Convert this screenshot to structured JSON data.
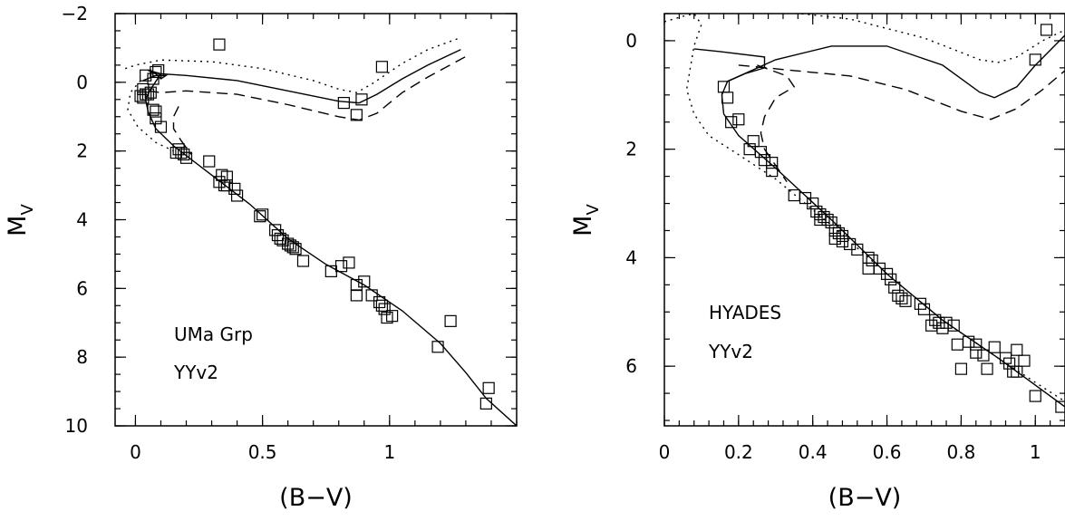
{
  "chart_data": [
    {
      "type": "scatter",
      "xlabel": "(B−V)",
      "ylabel": "M",
      "ylabel_sub": "V",
      "xlim": [
        -0.08,
        1.5
      ],
      "ylim": [
        10,
        -2
      ],
      "y_inverted": true,
      "xticks": [
        0,
        0.5,
        1
      ],
      "xtick_labels": [
        "0",
        "0.5",
        "1"
      ],
      "yticks": [
        -2,
        0,
        2,
        4,
        6,
        8,
        10
      ],
      "ytick_labels": [
        "−2",
        "0",
        "2",
        "4",
        "6",
        "8",
        "10"
      ],
      "annotations": [
        "UMa Grp",
        "YYv2"
      ],
      "points": [
        [
          0.33,
          -1.1
        ],
        [
          0.97,
          -0.45
        ],
        [
          0.04,
          -0.2
        ],
        [
          0.08,
          -0.3
        ],
        [
          0.09,
          -0.35
        ],
        [
          0.07,
          -0.1
        ],
        [
          0.03,
          0.2
        ],
        [
          0.02,
          0.4
        ],
        [
          0.04,
          0.35
        ],
        [
          0.06,
          0.3
        ],
        [
          0.03,
          0.45
        ],
        [
          0.05,
          0.35
        ],
        [
          0.07,
          0.8
        ],
        [
          0.08,
          0.85
        ],
        [
          0.08,
          1.05
        ],
        [
          0.1,
          1.3
        ],
        [
          0.82,
          0.6
        ],
        [
          0.89,
          0.5
        ],
        [
          0.87,
          0.95
        ],
        [
          0.17,
          1.95
        ],
        [
          0.18,
          2.05
        ],
        [
          0.19,
          2.1
        ],
        [
          0.2,
          2.2
        ],
        [
          0.16,
          2.05
        ],
        [
          0.29,
          2.3
        ],
        [
          0.34,
          2.7
        ],
        [
          0.36,
          2.75
        ],
        [
          0.33,
          2.9
        ],
        [
          0.35,
          3.0
        ],
        [
          0.36,
          3.0
        ],
        [
          0.39,
          3.1
        ],
        [
          0.4,
          3.3
        ],
        [
          0.5,
          3.85
        ],
        [
          0.49,
          3.9
        ],
        [
          0.55,
          4.3
        ],
        [
          0.56,
          4.45
        ],
        [
          0.57,
          4.55
        ],
        [
          0.58,
          4.6
        ],
        [
          0.6,
          4.7
        ],
        [
          0.61,
          4.75
        ],
        [
          0.62,
          4.8
        ],
        [
          0.63,
          4.85
        ],
        [
          0.66,
          5.2
        ],
        [
          0.77,
          5.5
        ],
        [
          0.81,
          5.35
        ],
        [
          0.84,
          5.25
        ],
        [
          0.9,
          5.8
        ],
        [
          0.87,
          5.9
        ],
        [
          0.87,
          6.2
        ],
        [
          0.93,
          6.2
        ],
        [
          0.96,
          6.4
        ],
        [
          0.97,
          6.5
        ],
        [
          0.98,
          6.6
        ],
        [
          0.99,
          6.85
        ],
        [
          1.01,
          6.8
        ],
        [
          1.24,
          6.95
        ],
        [
          1.19,
          7.7
        ],
        [
          1.39,
          8.9
        ],
        [
          1.38,
          9.35
        ]
      ],
      "isochrones": [
        {
          "style": "solid",
          "points": [
            [
              0.03,
              -0.05
            ],
            [
              0.08,
              -0.2
            ],
            [
              0.12,
              -0.2
            ],
            [
              0.1,
              -0.1
            ],
            [
              0.08,
              -0.25
            ],
            [
              0.05,
              -0.35
            ],
            [
              0.1,
              -0.25
            ],
            [
              0.06,
              0.2
            ],
            [
              0.04,
              0.5
            ],
            [
              0.05,
              0.85
            ],
            [
              0.08,
              1.35
            ],
            [
              0.15,
              1.85
            ],
            [
              0.3,
              2.7
            ],
            [
              0.45,
              3.55
            ],
            [
              0.6,
              4.55
            ],
            [
              0.75,
              5.3
            ],
            [
              0.9,
              5.9
            ],
            [
              1.05,
              6.65
            ],
            [
              1.2,
              7.6
            ],
            [
              1.3,
              8.45
            ],
            [
              1.38,
              9.2
            ],
            [
              1.5,
              10.0
            ]
          ]
        },
        {
          "style": "solid",
          "points": [
            [
              0.1,
              -0.25
            ],
            [
              0.2,
              -0.2
            ],
            [
              0.4,
              -0.05
            ],
            [
              0.6,
              0.25
            ],
            [
              0.8,
              0.55
            ],
            [
              0.88,
              0.6
            ],
            [
              0.95,
              0.35
            ],
            [
              1.05,
              -0.1
            ],
            [
              1.15,
              -0.5
            ],
            [
              1.28,
              -0.95
            ]
          ]
        },
        {
          "style": "dashed",
          "points": [
            [
              0.05,
              0.25
            ],
            [
              0.1,
              0.3
            ],
            [
              0.2,
              0.25
            ],
            [
              0.4,
              0.35
            ],
            [
              0.6,
              0.65
            ],
            [
              0.8,
              1.0
            ],
            [
              0.88,
              1.1
            ],
            [
              0.95,
              0.9
            ],
            [
              1.05,
              0.3
            ],
            [
              1.15,
              -0.15
            ],
            [
              1.3,
              -0.75
            ]
          ]
        },
        {
          "style": "dashed",
          "points": [
            [
              0.17,
              0.7
            ],
            [
              0.15,
              1.0
            ],
            [
              0.15,
              1.35
            ],
            [
              0.18,
              1.7
            ],
            [
              0.22,
              2.1
            ]
          ]
        },
        {
          "style": "dotted",
          "points": [
            [
              -0.04,
              -0.4
            ],
            [
              0.0,
              -0.5
            ],
            [
              0.1,
              -0.65
            ],
            [
              0.3,
              -0.6
            ],
            [
              0.5,
              -0.4
            ],
            [
              0.7,
              -0.05
            ],
            [
              0.8,
              0.2
            ],
            [
              0.87,
              0.3
            ],
            [
              0.93,
              0.05
            ],
            [
              1.05,
              -0.55
            ],
            [
              1.15,
              -0.95
            ],
            [
              1.28,
              -1.3
            ]
          ]
        },
        {
          "style": "dotted",
          "points": [
            [
              0.02,
              -0.05
            ],
            [
              -0.02,
              0.3
            ],
            [
              -0.03,
              0.8
            ],
            [
              0.01,
              1.3
            ],
            [
              0.08,
              1.75
            ],
            [
              0.15,
              2.0
            ]
          ]
        }
      ]
    },
    {
      "type": "scatter",
      "xlabel": "(B−V)",
      "ylabel": "M",
      "ylabel_sub": "V",
      "xlim": [
        0,
        1.08
      ],
      "ylim": [
        7.1,
        -0.5
      ],
      "y_inverted": true,
      "xticks": [
        0,
        0.2,
        0.4,
        0.6,
        0.8,
        1
      ],
      "xtick_labels": [
        "0",
        "0.2",
        "0.4",
        "0.6",
        "0.8",
        "1"
      ],
      "yticks": [
        0,
        2,
        4,
        6
      ],
      "ytick_labels": [
        "0",
        "2",
        "4",
        "6"
      ],
      "annotations": [
        "HYADES",
        "YYv2"
      ],
      "points": [
        [
          1.03,
          -0.2
        ],
        [
          1.0,
          0.35
        ],
        [
          0.16,
          0.85
        ],
        [
          0.17,
          1.05
        ],
        [
          0.18,
          1.5
        ],
        [
          0.2,
          1.45
        ],
        [
          0.24,
          1.85
        ],
        [
          0.23,
          2.0
        ],
        [
          0.26,
          2.05
        ],
        [
          0.27,
          2.2
        ],
        [
          0.29,
          2.25
        ],
        [
          0.29,
          2.4
        ],
        [
          0.35,
          2.85
        ],
        [
          0.38,
          2.9
        ],
        [
          0.4,
          3.0
        ],
        [
          0.41,
          3.15
        ],
        [
          0.42,
          3.2
        ],
        [
          0.43,
          3.25
        ],
        [
          0.44,
          3.3
        ],
        [
          0.42,
          3.3
        ],
        [
          0.45,
          3.35
        ],
        [
          0.46,
          3.5
        ],
        [
          0.47,
          3.55
        ],
        [
          0.46,
          3.65
        ],
        [
          0.48,
          3.6
        ],
        [
          0.48,
          3.7
        ],
        [
          0.5,
          3.75
        ],
        [
          0.52,
          3.85
        ],
        [
          0.55,
          4.0
        ],
        [
          0.56,
          4.05
        ],
        [
          0.55,
          4.2
        ],
        [
          0.58,
          4.2
        ],
        [
          0.6,
          4.3
        ],
        [
          0.61,
          4.4
        ],
        [
          0.62,
          4.55
        ],
        [
          0.63,
          4.7
        ],
        [
          0.64,
          4.75
        ],
        [
          0.65,
          4.8
        ],
        [
          0.69,
          4.85
        ],
        [
          0.7,
          4.95
        ],
        [
          0.72,
          5.25
        ],
        [
          0.73,
          5.15
        ],
        [
          0.74,
          5.2
        ],
        [
          0.75,
          5.3
        ],
        [
          0.76,
          5.2
        ],
        [
          0.78,
          5.25
        ],
        [
          0.79,
          5.6
        ],
        [
          0.82,
          5.55
        ],
        [
          0.84,
          5.6
        ],
        [
          0.84,
          5.75
        ],
        [
          0.86,
          5.8
        ],
        [
          0.87,
          6.05
        ],
        [
          0.8,
          6.05
        ],
        [
          0.89,
          5.65
        ],
        [
          0.92,
          5.85
        ],
        [
          0.93,
          5.95
        ],
        [
          0.94,
          6.1
        ],
        [
          0.95,
          6.1
        ],
        [
          0.95,
          5.7
        ],
        [
          0.97,
          5.9
        ],
        [
          1.0,
          6.55
        ],
        [
          1.07,
          6.75
        ]
      ],
      "isochrones": [
        {
          "style": "solid",
          "points": [
            [
              0.08,
              0.15
            ],
            [
              0.15,
              0.2
            ],
            [
              0.27,
              0.3
            ],
            [
              0.27,
              0.5
            ],
            [
              0.22,
              0.6
            ],
            [
              0.17,
              0.75
            ],
            [
              0.155,
              1.0
            ],
            [
              0.16,
              1.35
            ],
            [
              0.2,
              1.75
            ],
            [
              0.3,
              2.35
            ],
            [
              0.45,
              3.3
            ],
            [
              0.6,
              4.3
            ],
            [
              0.75,
              5.15
            ],
            [
              0.9,
              5.85
            ],
            [
              1.0,
              6.35
            ],
            [
              1.08,
              6.75
            ]
          ]
        },
        {
          "style": "solid",
          "points": [
            [
              0.17,
              0.75
            ],
            [
              0.3,
              0.35
            ],
            [
              0.45,
              0.1
            ],
            [
              0.6,
              0.1
            ],
            [
              0.75,
              0.45
            ],
            [
              0.85,
              0.95
            ],
            [
              0.89,
              1.05
            ],
            [
              0.95,
              0.85
            ],
            [
              1.0,
              0.45
            ],
            [
              1.08,
              -0.1
            ]
          ]
        },
        {
          "style": "dashed",
          "points": [
            [
              0.25,
              0.45
            ],
            [
              0.33,
              0.65
            ],
            [
              0.35,
              0.85
            ],
            [
              0.3,
              1.05
            ],
            [
              0.27,
              1.4
            ],
            [
              0.26,
              1.7
            ],
            [
              0.27,
              2.0
            ],
            [
              0.3,
              2.3
            ],
            [
              0.33,
              2.6
            ]
          ]
        },
        {
          "style": "dashed",
          "points": [
            [
              0.2,
              0.45
            ],
            [
              0.35,
              0.55
            ],
            [
              0.5,
              0.65
            ],
            [
              0.65,
              0.9
            ],
            [
              0.8,
              1.3
            ],
            [
              0.88,
              1.45
            ],
            [
              0.95,
              1.25
            ],
            [
              1.02,
              0.9
            ],
            [
              1.08,
              0.55
            ]
          ]
        },
        {
          "style": "dotted",
          "points": [
            [
              0.0,
              -0.35
            ],
            [
              0.05,
              -0.45
            ],
            [
              0.08,
              -0.5
            ],
            [
              0.1,
              -0.3
            ],
            [
              0.08,
              0.1
            ],
            [
              0.07,
              0.5
            ],
            [
              0.06,
              0.9
            ],
            [
              0.08,
              1.35
            ],
            [
              0.12,
              1.75
            ],
            [
              0.2,
              2.1
            ],
            [
              0.3,
              2.55
            ],
            [
              0.45,
              3.4
            ],
            [
              0.6,
              4.3
            ],
            [
              0.75,
              5.15
            ],
            [
              0.9,
              5.85
            ],
            [
              1.0,
              6.3
            ],
            [
              1.08,
              6.65
            ]
          ]
        },
        {
          "style": "dotted",
          "points": [
            [
              0.08,
              -0.5
            ],
            [
              0.3,
              -0.55
            ],
            [
              0.5,
              -0.4
            ],
            [
              0.7,
              -0.05
            ],
            [
              0.85,
              0.35
            ],
            [
              0.9,
              0.4
            ],
            [
              0.95,
              0.3
            ],
            [
              1.02,
              0.0
            ],
            [
              1.08,
              -0.2
            ]
          ]
        }
      ]
    }
  ]
}
